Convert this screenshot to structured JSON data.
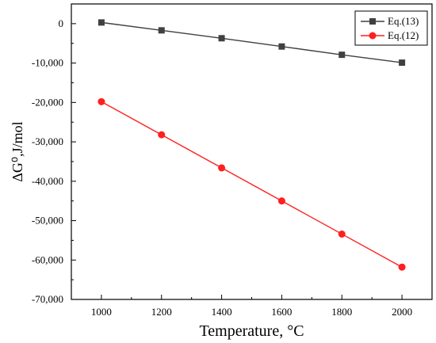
{
  "chart_data": {
    "type": "line",
    "title": "",
    "xlabel": "Temperature, °C",
    "ylabel": "ΔG⁰,J/mol",
    "x": [
      1000,
      1200,
      1400,
      1600,
      1800,
      2000
    ],
    "xticks": [
      "1000",
      "1200",
      "1400",
      "1600",
      "1800",
      "2000"
    ],
    "xlim": [
      900,
      2100
    ],
    "yticks": [
      "0",
      "-10,000",
      "-20,000",
      "-30,000",
      "-40,000",
      "-50,000",
      "-60,000",
      "-70,000"
    ],
    "ytick_values": [
      0,
      -10000,
      -20000,
      -30000,
      -40000,
      -50000,
      -60000,
      -70000
    ],
    "ylim": [
      -70000,
      5000
    ],
    "grid": false,
    "legend_position": "top-right",
    "series": [
      {
        "name": "Eq.(13)",
        "color": "#404040",
        "marker": "square",
        "values": [
          300,
          -1700,
          -3700,
          -5800,
          -7900,
          -9900
        ]
      },
      {
        "name": "Eq.(12)",
        "color": "#ff1f1f",
        "marker": "circle",
        "values": [
          -19800,
          -28200,
          -36600,
          -45000,
          -53400,
          -61800
        ]
      }
    ]
  }
}
